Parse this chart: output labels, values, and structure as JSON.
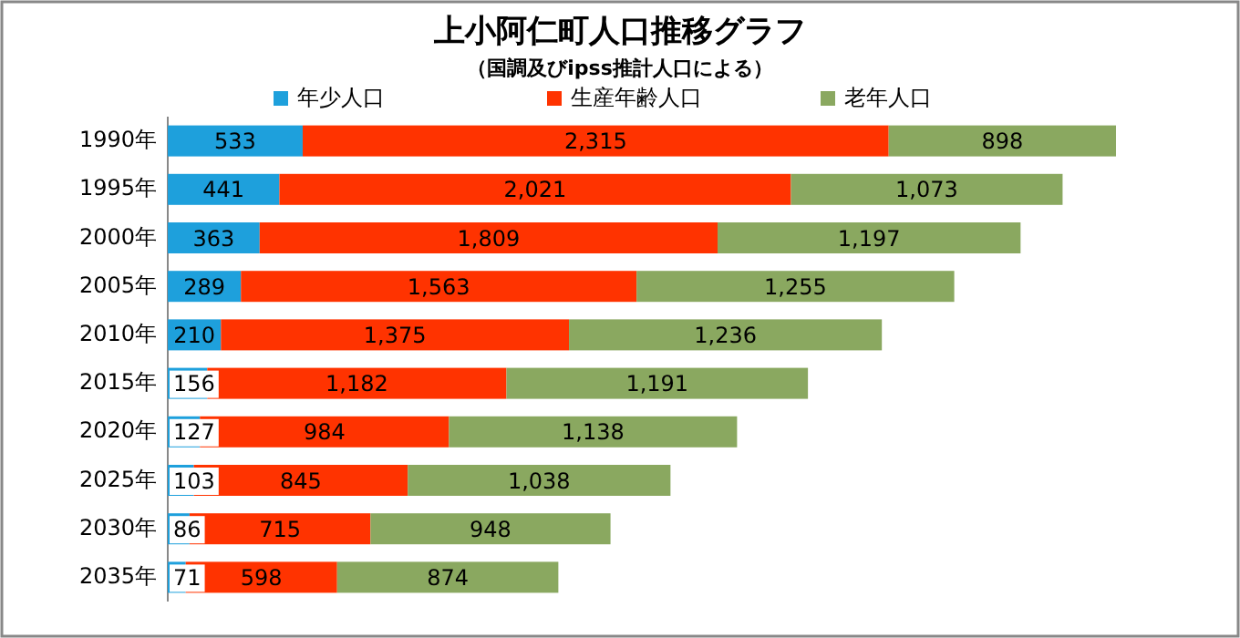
{
  "chart_data": {
    "type": "bar",
    "title": "上小阿仁町人口推移グラフ",
    "subtitle": "（国調及びipss推計人口による）",
    "orientation": "horizontal",
    "stacked": true,
    "legend": "top",
    "categories": [
      "1990年",
      "1995年",
      "2000年",
      "2005年",
      "2010年",
      "2015年",
      "2020年",
      "2025年",
      "2030年",
      "2035年"
    ],
    "series": [
      {
        "name": "年少人口",
        "color": "#1ea0dc",
        "values": [
          533,
          441,
          363,
          289,
          210,
          156,
          127,
          103,
          86,
          71
        ],
        "value_labels": [
          "533",
          "441",
          "363",
          "289",
          "210",
          "156",
          "127",
          "103",
          "86",
          "71"
        ]
      },
      {
        "name": "生産年齢人口",
        "color": "#ff3300",
        "values": [
          2315,
          2021,
          1809,
          1563,
          1375,
          1182,
          984,
          845,
          715,
          598
        ],
        "value_labels": [
          "2,315",
          "2,021",
          "1,809",
          "1,563",
          "1,375",
          "1,182",
          "984",
          "845",
          "715",
          "598"
        ]
      },
      {
        "name": "老年人口",
        "color": "#8aa860",
        "values": [
          898,
          1073,
          1197,
          1255,
          1236,
          1191,
          1138,
          1038,
          948,
          874
        ],
        "value_labels": [
          "898",
          "1,073",
          "1,197",
          "1,255",
          "1,236",
          "1,191",
          "1,138",
          "1,038",
          "948",
          "874"
        ]
      }
    ]
  }
}
